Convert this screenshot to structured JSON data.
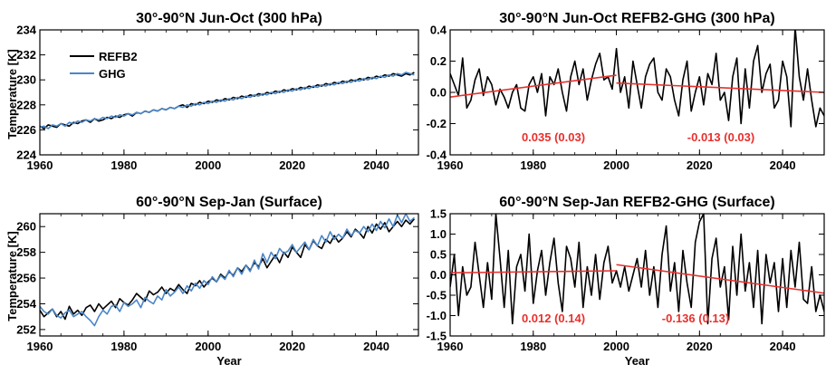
{
  "chart_data": [
    {
      "type": "line",
      "title": "30°-90°N Jun-Oct (300 hPa)",
      "xlabel": "",
      "ylabel": "Temperature [K]",
      "xlim": [
        1960,
        2050
      ],
      "ylim": [
        224,
        234
      ],
      "xticks": [
        1960,
        1980,
        2000,
        2020,
        2040
      ],
      "yticks": [
        224,
        226,
        228,
        230,
        232,
        234
      ],
      "legend": {
        "placement": "top-left",
        "entries": [
          "REFB2",
          "GHG"
        ]
      },
      "series": [
        {
          "name": "REFB2",
          "color": "#000000",
          "x_start": 1960,
          "x_step": 1,
          "values": [
            226.3,
            226.1,
            226.4,
            226.3,
            226.2,
            226.5,
            226.4,
            226.3,
            226.6,
            226.5,
            226.7,
            226.8,
            226.6,
            226.9,
            226.7,
            226.8,
            227.0,
            226.9,
            227.1,
            227.0,
            227.2,
            227.3,
            227.1,
            227.4,
            227.3,
            227.5,
            227.4,
            227.6,
            227.5,
            227.7,
            227.6,
            227.8,
            227.7,
            227.9,
            228.0,
            227.8,
            228.1,
            228.0,
            228.2,
            228.1,
            228.3,
            228.2,
            228.4,
            228.3,
            228.5,
            228.4,
            228.6,
            228.5,
            228.7,
            228.6,
            228.8,
            228.7,
            228.9,
            228.8,
            229.0,
            228.9,
            229.1,
            229.0,
            229.2,
            229.1,
            229.3,
            229.2,
            229.4,
            229.3,
            229.5,
            229.4,
            229.6,
            229.5,
            229.7,
            229.6,
            229.8,
            229.7,
            229.9,
            229.8,
            230.0,
            229.9,
            230.1,
            230.0,
            230.2,
            230.1,
            230.3,
            230.2,
            230.4,
            230.3,
            230.5,
            230.4,
            230.3,
            230.5,
            230.4,
            230.6
          ]
        },
        {
          "name": "GHG",
          "color": "#4a86c8",
          "x_start": 1960,
          "x_step": 1,
          "values": [
            226.2,
            226.3,
            226.1,
            226.4,
            226.3,
            226.5,
            226.3,
            226.6,
            226.5,
            226.7,
            226.6,
            226.8,
            226.7,
            226.9,
            226.8,
            227.0,
            226.9,
            227.1,
            227.0,
            227.2,
            227.1,
            227.3,
            227.2,
            227.4,
            227.3,
            227.5,
            227.4,
            227.6,
            227.5,
            227.7,
            227.6,
            227.8,
            227.7,
            227.9,
            227.8,
            228.0,
            227.9,
            228.1,
            228.0,
            228.2,
            228.1,
            228.3,
            228.2,
            228.4,
            228.3,
            228.5,
            228.4,
            228.6,
            228.5,
            228.7,
            228.6,
            228.8,
            228.7,
            228.9,
            228.8,
            229.0,
            228.9,
            229.1,
            229.0,
            229.2,
            229.1,
            229.3,
            229.2,
            229.4,
            229.3,
            229.5,
            229.4,
            229.6,
            229.5,
            229.7,
            229.6,
            229.8,
            229.7,
            229.9,
            229.8,
            230.0,
            229.9,
            230.1,
            230.0,
            230.2,
            230.1,
            230.3,
            230.2,
            230.4,
            230.3,
            230.5,
            230.4,
            230.6,
            230.5,
            230.4
          ]
        }
      ]
    },
    {
      "type": "line",
      "title": "30°-90°N Jun-Oct REFB2-GHG (300 hPa)",
      "xlabel": "",
      "ylabel": "",
      "xlim": [
        1960,
        2050
      ],
      "ylim": [
        -0.4,
        0.4
      ],
      "xticks": [
        1960,
        1980,
        2000,
        2020,
        2040
      ],
      "yticks": [
        -0.4,
        -0.2,
        0.0,
        0.2,
        0.4
      ],
      "series": [
        {
          "color": "#000000",
          "x_start": 1960,
          "x_step": 1,
          "values": [
            0.12,
            0.05,
            -0.02,
            0.22,
            -0.1,
            -0.05,
            0.08,
            0.15,
            -0.02,
            0.1,
            0.05,
            -0.08,
            0.02,
            -0.03,
            -0.1,
            0.0,
            0.05,
            -0.1,
            -0.12,
            0.05,
            0.1,
            0.0,
            0.12,
            -0.15,
            0.1,
            0.05,
            0.15,
            0.0,
            -0.12,
            0.1,
            0.2,
            0.05,
            0.15,
            -0.05,
            0.08,
            0.18,
            0.25,
            0.08,
            0.1,
            0.02,
            0.28,
            0.0,
            0.1,
            -0.1,
            0.2,
            0.05,
            -0.1,
            0.1,
            0.18,
            0.22,
            0.0,
            -0.05,
            0.15,
            0.1,
            -0.05,
            -0.15,
            0.08,
            0.2,
            -0.12,
            0.0,
            0.1,
            -0.08,
            0.12,
            0.05,
            0.25,
            -0.05,
            0.0,
            -0.18,
            0.1,
            0.22,
            -0.2,
            0.15,
            -0.1,
            0.2,
            0.3,
            0.0,
            0.12,
            0.18,
            -0.1,
            -0.05,
            0.2,
            0.1,
            -0.22,
            0.42,
            0.1,
            -0.05,
            0.15,
            -0.05,
            -0.22,
            -0.1,
            -0.15
          ]
        }
      ],
      "trends": [
        {
          "x": [
            1960,
            2000
          ],
          "y": [
            -0.03,
            0.11
          ],
          "label": "0.035 (0.03)",
          "color": "#e8302c"
        },
        {
          "x": [
            2000,
            2050
          ],
          "y": [
            0.06,
            0.0
          ],
          "label": "-0.013 (0.03)",
          "color": "#e8302c"
        }
      ]
    },
    {
      "type": "line",
      "title": "60°-90°N Sep-Jan (Surface)",
      "xlabel": "Year",
      "ylabel": "Temperature [K]",
      "xlim": [
        1960,
        2050
      ],
      "ylim": [
        251.5,
        261
      ],
      "xticks": [
        1960,
        1980,
        2000,
        2020,
        2040
      ],
      "yticks": [
        252,
        254,
        256,
        258,
        260
      ],
      "series": [
        {
          "name": "REFB2",
          "color": "#000000",
          "x_start": 1960,
          "x_step": 1,
          "values": [
            253.5,
            253.0,
            253.3,
            253.6,
            253.0,
            253.4,
            252.8,
            253.8,
            253.2,
            253.5,
            253.1,
            253.7,
            253.9,
            253.4,
            254.0,
            253.6,
            253.9,
            254.2,
            253.7,
            254.4,
            254.1,
            253.9,
            254.3,
            254.8,
            254.5,
            254.2,
            255.0,
            254.7,
            254.9,
            255.3,
            254.8,
            255.2,
            255.0,
            255.5,
            255.1,
            254.8,
            255.6,
            255.4,
            255.8,
            255.3,
            255.7,
            256.0,
            255.7,
            256.3,
            256.0,
            256.5,
            256.2,
            256.8,
            256.5,
            257.0,
            256.6,
            257.2,
            256.9,
            257.5,
            256.8,
            257.3,
            257.8,
            257.2,
            258.0,
            257.6,
            258.4,
            258.0,
            257.6,
            258.6,
            258.2,
            258.9,
            258.5,
            258.3,
            259.0,
            258.7,
            259.3,
            258.8,
            259.1,
            259.6,
            259.2,
            259.8,
            259.5,
            259.1,
            260.0,
            259.5,
            260.2,
            259.8,
            260.3,
            259.6,
            260.0,
            260.4,
            260.0,
            260.5,
            260.2,
            260.6
          ]
        },
        {
          "name": "GHG",
          "color": "#4a86c8",
          "x_start": 1960,
          "x_step": 1,
          "values": [
            253.8,
            253.4,
            253.2,
            253.6,
            253.1,
            252.9,
            253.3,
            253.5,
            253.0,
            253.2,
            253.4,
            253.0,
            252.7,
            252.3,
            253.0,
            253.5,
            253.2,
            253.8,
            253.9,
            253.4,
            254.1,
            253.8,
            254.0,
            254.3,
            253.7,
            254.5,
            254.2,
            254.0,
            254.6,
            254.3,
            255.1,
            254.6,
            254.9,
            255.3,
            254.8,
            255.4,
            255.0,
            255.6,
            255.2,
            255.8,
            255.5,
            256.1,
            255.7,
            256.2,
            255.9,
            256.6,
            256.1,
            256.8,
            256.3,
            257.0,
            256.5,
            257.4,
            256.7,
            257.9,
            257.2,
            258.0,
            257.5,
            258.3,
            257.9,
            258.1,
            258.6,
            258.0,
            258.4,
            258.8,
            258.2,
            259.0,
            258.5,
            259.3,
            258.8,
            259.6,
            259.0,
            259.4,
            259.1,
            259.8,
            259.3,
            259.7,
            259.5,
            260.0,
            259.6,
            260.2,
            259.7,
            260.4,
            259.9,
            260.6,
            260.0,
            260.9,
            260.3,
            261.0,
            260.4,
            260.7
          ]
        }
      ]
    },
    {
      "type": "line",
      "title": "60°-90°N Sep-Jan REFB2-GHG (Surface)",
      "xlabel": "Year",
      "ylabel": "",
      "xlim": [
        1960,
        2050
      ],
      "ylim": [
        -1.5,
        1.5
      ],
      "xticks": [
        1960,
        1980,
        2000,
        2020,
        2040
      ],
      "yticks": [
        -1.5,
        -1.0,
        -0.5,
        0.0,
        0.5,
        1.0,
        1.5
      ],
      "series": [
        {
          "color": "#000000",
          "x_start": 1960,
          "x_step": 1,
          "values": [
            -0.3,
            0.5,
            -1.0,
            0.2,
            -0.5,
            -0.3,
            0.8,
            0.0,
            -0.8,
            0.3,
            -0.6,
            1.5,
            0.4,
            -0.8,
            0.6,
            -1.2,
            0.2,
            0.5,
            -0.4,
            1.0,
            -0.7,
            0.1,
            0.6,
            -0.5,
            0.3,
            0.9,
            -0.2,
            -0.9,
            0.7,
            0.4,
            -0.3,
            0.8,
            -0.8,
            0.2,
            -0.5,
            0.5,
            -0.6,
            0.3,
            0.7,
            -0.2,
            0.1,
            -0.3,
            0.2,
            -0.4,
            0.0,
            0.4,
            -0.3,
            0.6,
            -0.5,
            0.2,
            -0.8,
            0.5,
            1.2,
            -0.4,
            0.3,
            -0.9,
            0.6,
            -0.2,
            -0.8,
            0.8,
            1.3,
            1.5,
            -1.2,
            0.4,
            0.9,
            -0.3,
            0.2,
            -1.1,
            0.7,
            -0.5,
            1.0,
            -0.4,
            0.3,
            -0.8,
            0.6,
            -1.2,
            0.5,
            -0.2,
            0.3,
            -0.9,
            0.4,
            -0.8,
            0.6,
            -0.3,
            0.8,
            -0.6,
            -0.7,
            0.2,
            -0.9,
            -0.5,
            -0.9
          ]
        }
      ],
      "trends": [
        {
          "x": [
            1960,
            2000
          ],
          "y": [
            0.05,
            0.1
          ],
          "label": "0.012 (0.14)",
          "color": "#e8302c"
        },
        {
          "x": [
            2000,
            2050
          ],
          "y": [
            0.25,
            -0.45
          ],
          "label": "-0.136 (0.13)",
          "color": "#e8302c"
        }
      ]
    }
  ]
}
